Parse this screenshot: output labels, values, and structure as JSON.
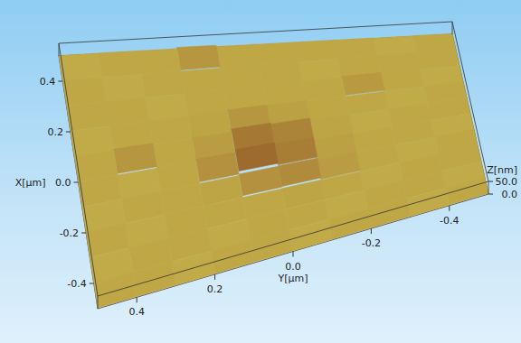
{
  "chart_data": {
    "type": "surface",
    "x_label": "X[µm]",
    "y_label": "Y[µm]",
    "z_label": "Z[nm]",
    "xlim": [
      -0.5,
      0.5
    ],
    "ylim": [
      -0.5,
      0.5
    ],
    "zlim": [
      0,
      50
    ],
    "xticks": [
      -0.4,
      -0.2,
      {
        "value": 0,
        "label": "0.0"
      },
      0.2,
      0.4
    ],
    "yticks": [
      -0.4,
      -0.2,
      {
        "value": 0,
        "label": "0.0"
      },
      0.2,
      0.4
    ],
    "zticks": [
      {
        "value": 0,
        "label": "0.0"
      },
      {
        "value": 50,
        "label": "50.0"
      }
    ],
    "cells": {
      "x": [
        -0.45,
        -0.35,
        -0.25,
        -0.15,
        -0.05,
        0.05,
        0.15,
        0.25,
        0.35,
        0.45
      ],
      "y": [
        -0.45,
        -0.35,
        -0.25,
        -0.15,
        -0.05,
        0.05,
        0.15,
        0.25,
        0.35,
        0.45
      ],
      "z": [
        [
          3,
          2,
          3,
          3,
          2,
          3,
          3,
          2,
          3,
          3
        ],
        [
          2,
          3,
          3,
          2,
          3,
          3,
          2,
          3,
          3,
          2
        ],
        [
          3,
          3,
          2,
          3,
          4,
          3,
          3,
          3,
          2,
          3
        ],
        [
          3,
          2,
          3,
          6,
          12,
          10,
          4,
          3,
          3,
          2
        ],
        [
          2,
          3,
          3,
          5,
          16,
          22,
          10,
          3,
          2,
          3
        ],
        [
          3,
          3,
          2,
          4,
          14,
          18,
          6,
          3,
          8,
          3
        ],
        [
          3,
          2,
          3,
          3,
          5,
          8,
          4,
          3,
          3,
          2
        ],
        [
          2,
          3,
          7,
          3,
          3,
          3,
          3,
          2,
          3,
          3
        ],
        [
          3,
          3,
          3,
          2,
          3,
          3,
          3,
          3,
          2,
          3
        ],
        [
          3,
          2,
          3,
          3,
          3,
          3,
          8,
          3,
          3,
          2
        ]
      ]
    }
  }
}
